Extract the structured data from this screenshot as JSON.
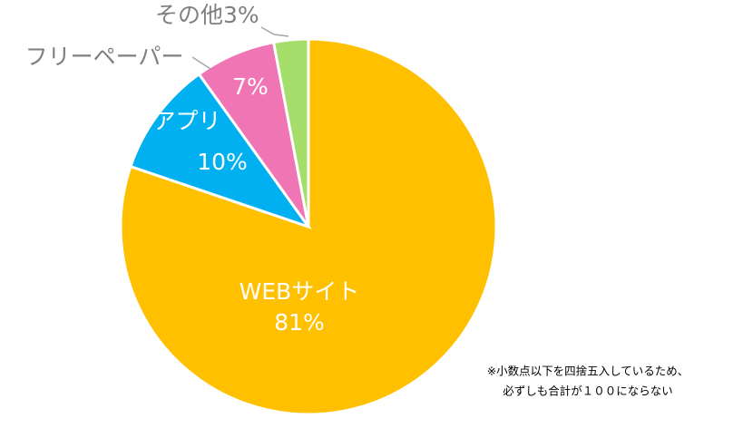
{
  "chart_data": {
    "type": "pie",
    "categories": [
      "WEBサイト",
      "アプリ",
      "フリーペーパー",
      "その他"
    ],
    "values": [
      81,
      10,
      7,
      3
    ],
    "value_labels": [
      "81%",
      "10%",
      "7%",
      "3%"
    ],
    "colors": [
      "#FFC000",
      "#00B0F0",
      "#F075B4",
      "#A6DE6C"
    ],
    "note": [
      "※小数点以下を四捨五入しているため、",
      "必ずしも合計が１００にならない"
    ]
  }
}
